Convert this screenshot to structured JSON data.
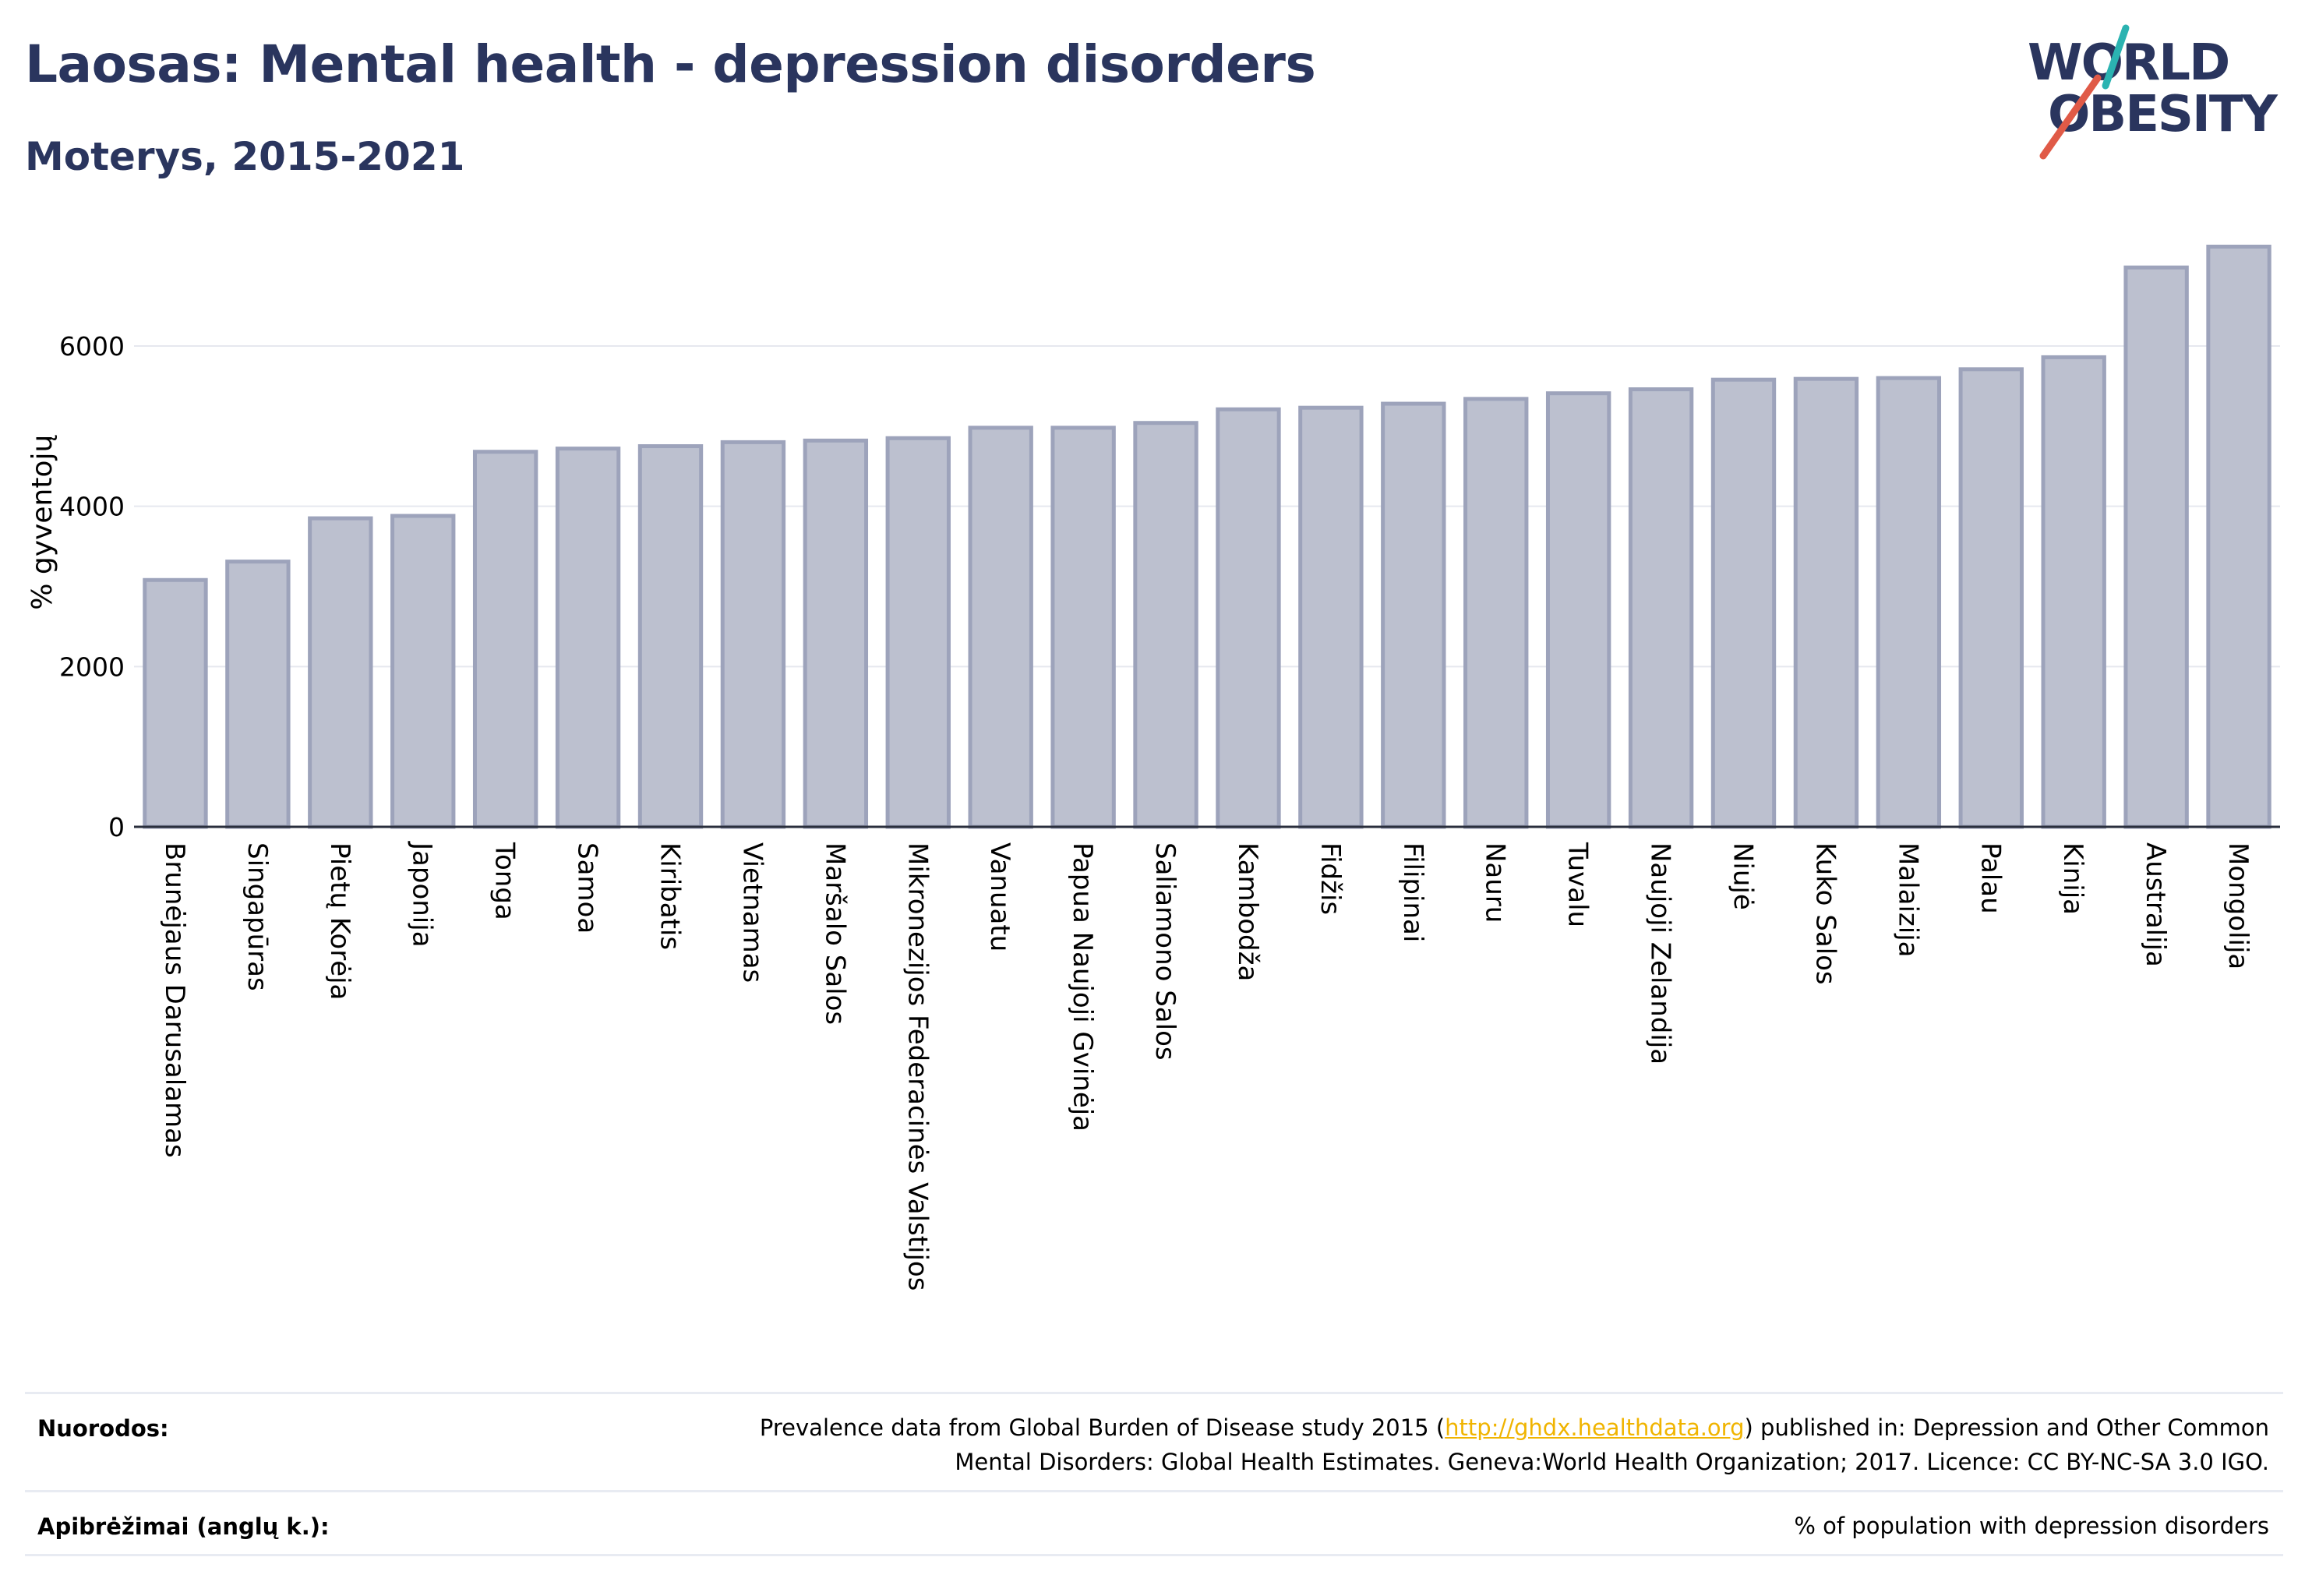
{
  "header": {
    "title": "Laosas: Mental health - depression disorders",
    "subtitle": "Moterys, 2015-2021"
  },
  "logo": {
    "line1": "WORLD",
    "line2": "OBESITY",
    "accent": "#e05a47",
    "accent2": "#2bb3b1",
    "color": "#2a355e"
  },
  "chart_data": {
    "type": "bar",
    "categories": [
      "Brunėjaus Darusalamas",
      "Singapūras",
      "Pietų Korėja",
      "Japonija",
      "Tonga",
      "Samoa",
      "Kiribatis",
      "Vietnamas",
      "Maršalo Salos",
      "Mikronezijos Federacinės Valstijos",
      "Vanuatu",
      "Papua Naujoji Gvinėja",
      "Saliamono Salos",
      "Kambodža",
      "Fidžis",
      "Filipinai",
      "Nauru",
      "Tuvalu",
      "Naujoji Zelandija",
      "Niujė",
      "Kuko Salos",
      "Malaizija",
      "Palau",
      "Kinija",
      "Australija",
      "Mongolija"
    ],
    "values": [
      3080,
      3310,
      3850,
      3880,
      4680,
      4720,
      4750,
      4800,
      4820,
      4850,
      4980,
      4980,
      5040,
      5210,
      5230,
      5280,
      5340,
      5410,
      5460,
      5580,
      5590,
      5600,
      5710,
      5860,
      6980,
      7240
    ],
    "ylabel": "% gyventojų",
    "yticks": [
      0,
      2000,
      4000,
      6000
    ],
    "ylim": [
      0,
      7500
    ],
    "grid": true,
    "bar_fill": "#bcc0cf",
    "bar_stroke": "#9da3bb"
  },
  "footer": {
    "sources_label": "Nuorodos:",
    "sources_text_before": "Prevalence data from Global Burden of Disease study 2015 (",
    "sources_link": "http://ghdx.healthdata.org",
    "sources_text_after": ") published in: Depression and Other Common",
    "sources_line2": "Mental Disorders: Global Health Estimates. Geneva:World Health Organization; 2017. Licence: CC BY-NC-SA 3.0 IGO.",
    "definitions_label": "Apibrėžimai (anglų k.):",
    "definitions_text": "% of population with depression disorders"
  }
}
